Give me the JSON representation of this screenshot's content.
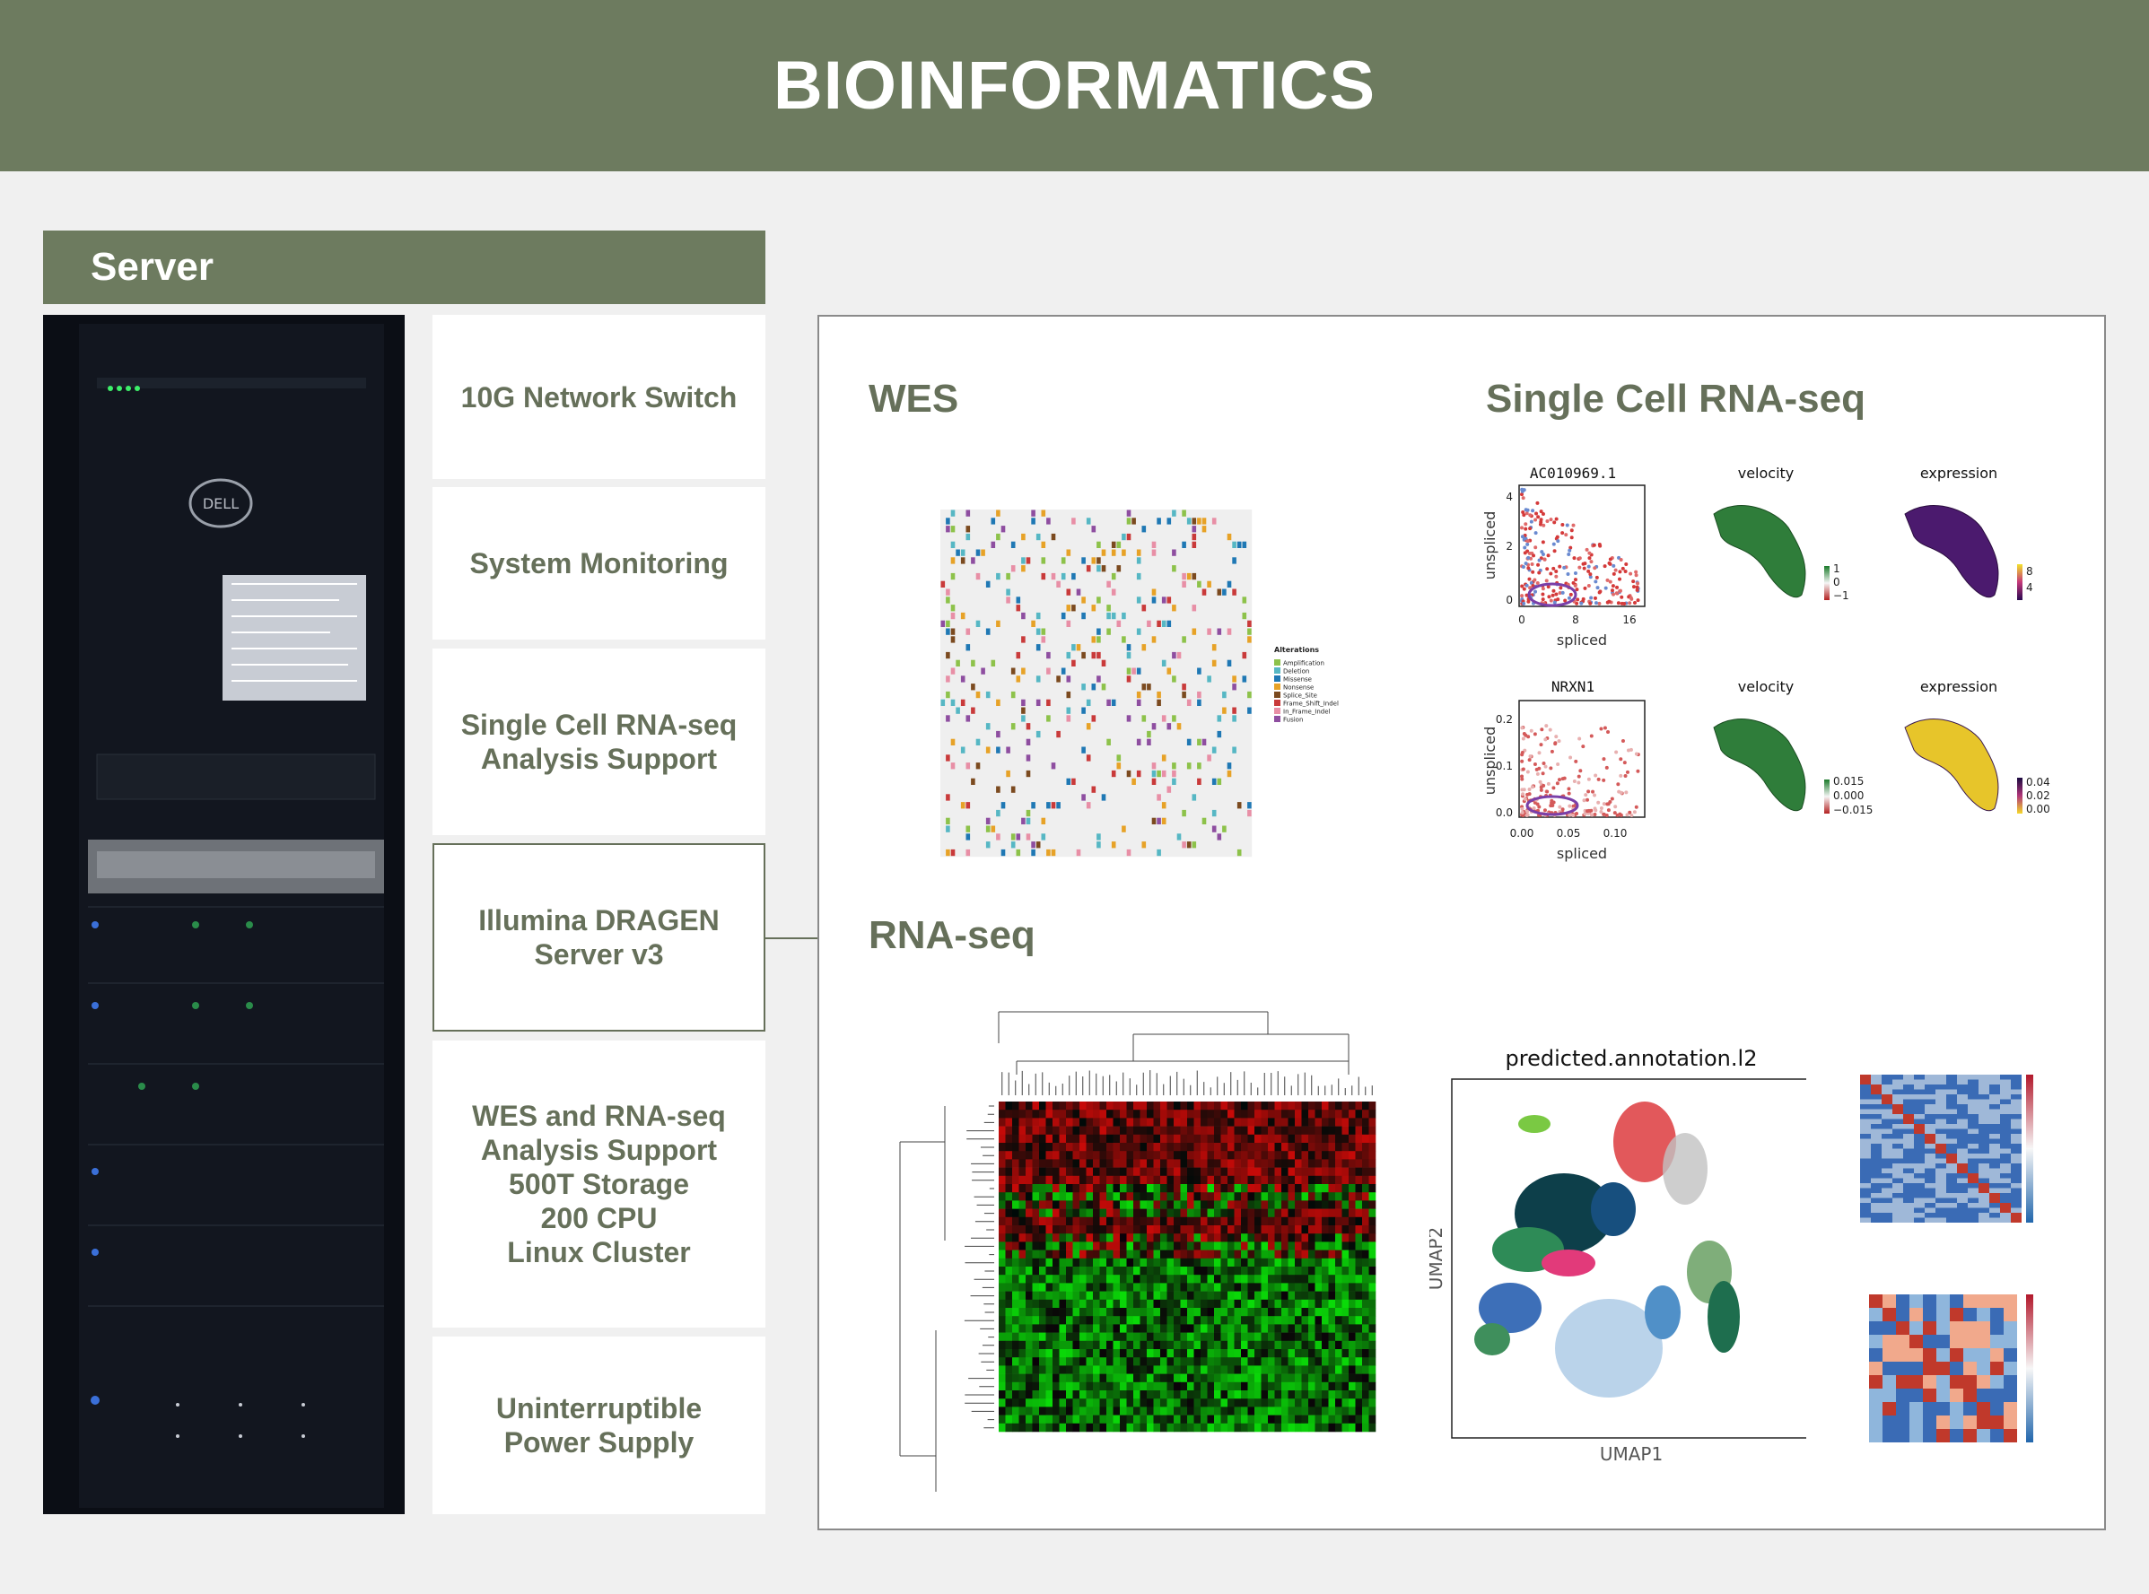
{
  "header": {
    "title": "BIOINFORMATICS"
  },
  "server": {
    "title": "Server",
    "items": [
      {
        "label": "10G Network Switch"
      },
      {
        "label": "System Monitoring"
      },
      {
        "label": "Single Cell RNA-seq\nAnalysis Support"
      },
      {
        "label": "Illumina DRAGEN\nServer v3"
      },
      {
        "label": "WES and RNA-seq\nAnalysis Support\n500T Storage\n200 CPU\nLinux Cluster"
      },
      {
        "label": "Uninterruptible\nPower Supply"
      }
    ]
  },
  "sections": {
    "wes": "WES",
    "scrna": "Single Cell RNA-seq",
    "rnaseq": "RNA-seq"
  },
  "scrna_plots": {
    "gene1": "AC010969.1",
    "gene2": "NRXN1",
    "velocity": "velocity",
    "expression": "expression",
    "xlabel": "spliced",
    "ylabel": "unspliced",
    "g1_xticks": [
      "0",
      "8",
      "16"
    ],
    "g1_yticks": [
      "4",
      "2",
      "0"
    ],
    "g2_xticks": [
      "0.00",
      "0.05",
      "0.10"
    ],
    "g2_yticks": [
      "0.2",
      "0.1",
      "0.0"
    ],
    "vel1_ticks": [
      "1",
      "0",
      "−1"
    ],
    "exp1_ticks": [
      "8",
      "4"
    ],
    "vel2_ticks": [
      "0.015",
      "0.000",
      "−0.015"
    ],
    "exp2_ticks": [
      "0.04",
      "0.02",
      "0.00"
    ]
  },
  "umap": {
    "title": "predicted.annotation.l2",
    "xlabel": "UMAP1",
    "ylabel": "UMAP2"
  },
  "wes_plot": {
    "legend_title": "Alterations",
    "legend": [
      "Amplification",
      "Deletion",
      "Missense",
      "Nonsense",
      "Splice_Site",
      "Frame_Shift_Indel",
      "In_Frame_Indel",
      "Fusion"
    ],
    "legend_colors": [
      "#8dc24a",
      "#56b7c4",
      "#1f78b4",
      "#e7a227",
      "#7b4a1f",
      "#c93a3a",
      "#e88fa6",
      "#8e4ea0"
    ]
  },
  "colors": {
    "accent": "#6d7b5f",
    "text_accent": "#66705a"
  }
}
